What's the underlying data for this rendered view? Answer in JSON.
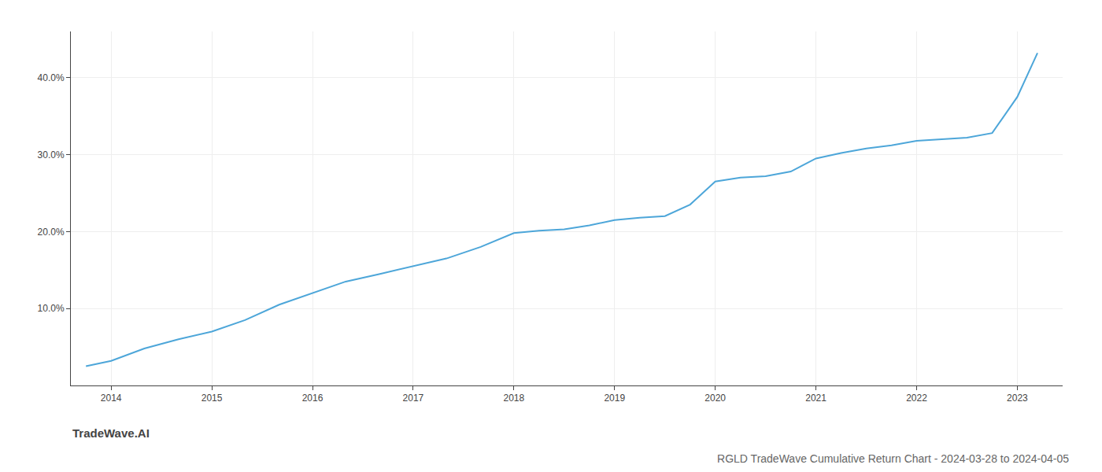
{
  "chart_data": {
    "type": "line",
    "title": "RGLD TradeWave Cumulative Return Chart - 2024-03-28 to 2024-04-05",
    "annotations": [
      "TradeWave.AI"
    ],
    "x": [
      2013.75,
      2014.0,
      2014.33,
      2014.67,
      2015.0,
      2015.33,
      2015.67,
      2016.0,
      2016.33,
      2016.67,
      2017.0,
      2017.33,
      2017.67,
      2018.0,
      2018.25,
      2018.5,
      2018.75,
      2019.0,
      2019.25,
      2019.5,
      2019.75,
      2020.0,
      2020.25,
      2020.5,
      2020.75,
      2021.0,
      2021.25,
      2021.5,
      2021.75,
      2022.0,
      2022.25,
      2022.5,
      2022.75,
      2023.0,
      2023.2
    ],
    "values": [
      2.5,
      3.2,
      4.8,
      6.0,
      7.0,
      8.5,
      10.5,
      12.0,
      13.5,
      14.5,
      15.5,
      16.5,
      18.0,
      19.8,
      20.1,
      20.3,
      20.8,
      21.5,
      21.8,
      22.0,
      23.5,
      26.5,
      27.0,
      27.2,
      27.8,
      29.5,
      30.2,
      30.8,
      31.2,
      31.8,
      32.0,
      32.2,
      32.8,
      37.5,
      43.2
    ],
    "color": "#4da6d9",
    "xlim": [
      2013.6,
      2023.45
    ],
    "xticks": [
      2014,
      2015,
      2016,
      2017,
      2018,
      2019,
      2020,
      2021,
      2022,
      2023
    ],
    "ylim": [
      0,
      46
    ],
    "yticks": [
      {
        "value": 10.0,
        "label": "10.0%"
      },
      {
        "value": 20.0,
        "label": "20.0%"
      },
      {
        "value": 30.0,
        "label": "30.0%"
      },
      {
        "value": 40.0,
        "label": "40.0%"
      }
    ],
    "grid": true
  }
}
